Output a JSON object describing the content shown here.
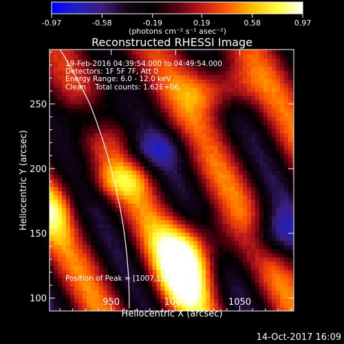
{
  "colorbar": {
    "tick_labels": [
      "-0.97",
      "-0.58",
      "-0.19",
      "0.19",
      "0.58",
      "0.97"
    ],
    "unit_label": "(photons cm⁻² s⁻¹ asec⁻²)",
    "min": -0.97,
    "max": 0.97,
    "colormap": [
      "#0000ff",
      "#2020c0",
      "#3a1e7a",
      "#140418",
      "#000000",
      "#5a0010",
      "#c01a1a",
      "#ff5a00",
      "#ffc000",
      "#ffff40",
      "#ffffff"
    ]
  },
  "chart_data": {
    "type": "heatmap",
    "title": "Reconstructed RHESSI Image",
    "xlabel": "Heliocentric X (arcsec)",
    "ylabel": "Heliocentric Y (arcsec)",
    "xlim": [
      902,
      1092
    ],
    "ylim": [
      90,
      292
    ],
    "x_ticks": [
      950,
      1000,
      1050
    ],
    "y_ticks": [
      100,
      150,
      200,
      250
    ],
    "x_tick_labels": [
      "950",
      "1000",
      "1050"
    ],
    "y_tick_labels": [
      "100",
      "150",
      "200",
      "250"
    ],
    "annotations": {
      "time_range": "19-Feb-2016 04:39:54.000 to 04:49:54.000",
      "detectors": "Detectors: 1F 5F 7F, Att 0",
      "energy_range": "Energy Range: 6.0 - 12.0 keV",
      "clean_counts": "Clean    Total counts: 1.62E+06",
      "peak_position": "Position of Peak = [1007,110]"
    },
    "peak": [
      1007,
      110
    ]
  },
  "footer": {
    "timestamp": "14-Oct-2017 16:09"
  }
}
